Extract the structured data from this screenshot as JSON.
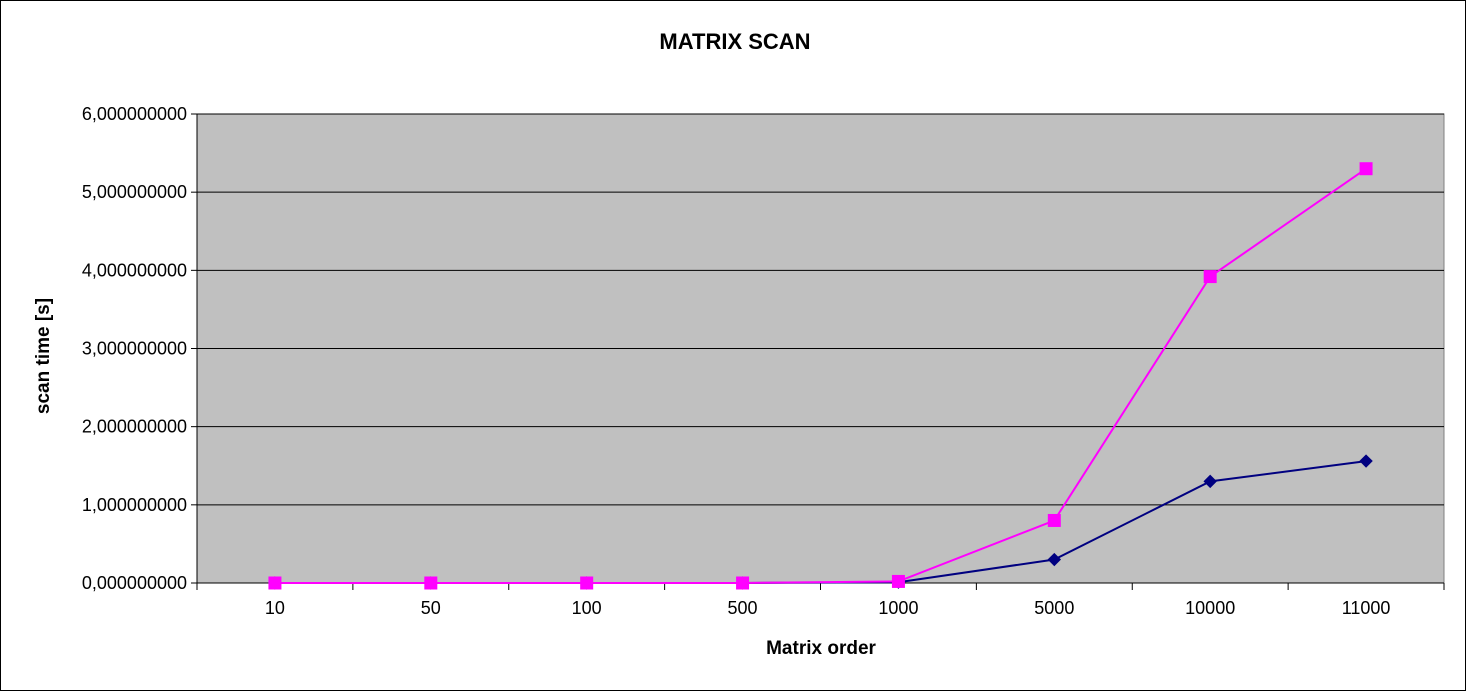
{
  "chart_data": {
    "type": "line",
    "title": "MATRIX SCAN",
    "xlabel": "Matrix order",
    "ylabel": "scan time  [s]",
    "categories": [
      "10",
      "50",
      "100",
      "500",
      "1000",
      "5000",
      "10000",
      "11000"
    ],
    "ylim": [
      0,
      6
    ],
    "yticks": [
      0,
      1,
      2,
      3,
      4,
      5,
      6
    ],
    "ytick_labels": [
      "0,000000000",
      "1,000000000",
      "2,000000000",
      "3,000000000",
      "4,000000000",
      "5,000000000",
      "6,000000000"
    ],
    "grid": true,
    "plot_background": "#c0c0c0",
    "series": [
      {
        "marker": "diamond",
        "color": "#000080",
        "values": [
          0,
          0,
          0,
          0,
          0.01,
          0.3,
          1.3,
          1.56
        ]
      },
      {
        "marker": "square",
        "color": "#ff00ff",
        "values": [
          0,
          0,
          0,
          0,
          0.02,
          0.8,
          3.92,
          5.3
        ]
      }
    ]
  }
}
